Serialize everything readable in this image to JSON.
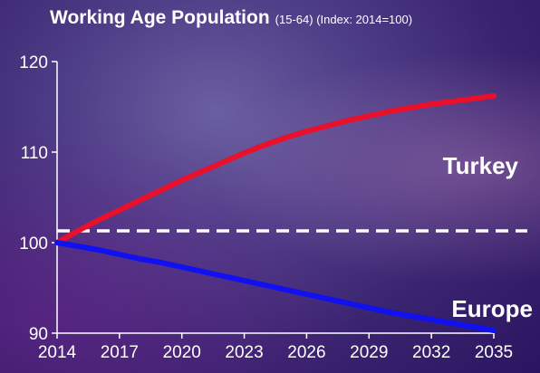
{
  "chart_data": {
    "type": "line",
    "title": "Working Age Population",
    "subtitle": "(15-64) (Index: 2014=100)",
    "xlabel": "",
    "ylabel": "",
    "x_ticks": [
      "2014",
      "2017",
      "2020",
      "2023",
      "2026",
      "2029",
      "2032",
      "2035"
    ],
    "y_ticks": [
      "90",
      "100",
      "110",
      "120"
    ],
    "xlim": [
      2014,
      2035
    ],
    "ylim": [
      90,
      120
    ],
    "grid": false,
    "reference_line": {
      "y": 101.3,
      "style": "dashed",
      "color": "#ffffff"
    },
    "series": [
      {
        "name": "Turkey",
        "color": "#e8102a",
        "x": [
          2014,
          2015,
          2016,
          2017,
          2018,
          2019,
          2020,
          2021,
          2022,
          2023,
          2024,
          2025,
          2026,
          2027,
          2028,
          2029,
          2030,
          2031,
          2032,
          2033,
          2034,
          2035
        ],
        "y": [
          100.0,
          101.3,
          102.5,
          103.6,
          104.7,
          105.8,
          106.9,
          107.9,
          108.9,
          109.9,
          110.8,
          111.6,
          112.3,
          112.9,
          113.5,
          114.0,
          114.5,
          114.9,
          115.3,
          115.6,
          115.9,
          116.2
        ]
      },
      {
        "name": "Europe",
        "color": "#1010f0",
        "x": [
          2014,
          2015,
          2016,
          2017,
          2018,
          2019,
          2020,
          2021,
          2022,
          2023,
          2024,
          2025,
          2026,
          2027,
          2028,
          2029,
          2030,
          2031,
          2032,
          2033,
          2034,
          2035
        ],
        "y": [
          100.0,
          99.6,
          99.2,
          98.7,
          98.2,
          97.8,
          97.3,
          96.8,
          96.3,
          95.8,
          95.3,
          94.8,
          94.3,
          93.8,
          93.3,
          92.8,
          92.3,
          91.9,
          91.5,
          91.1,
          90.7,
          90.3
        ]
      }
    ]
  }
}
